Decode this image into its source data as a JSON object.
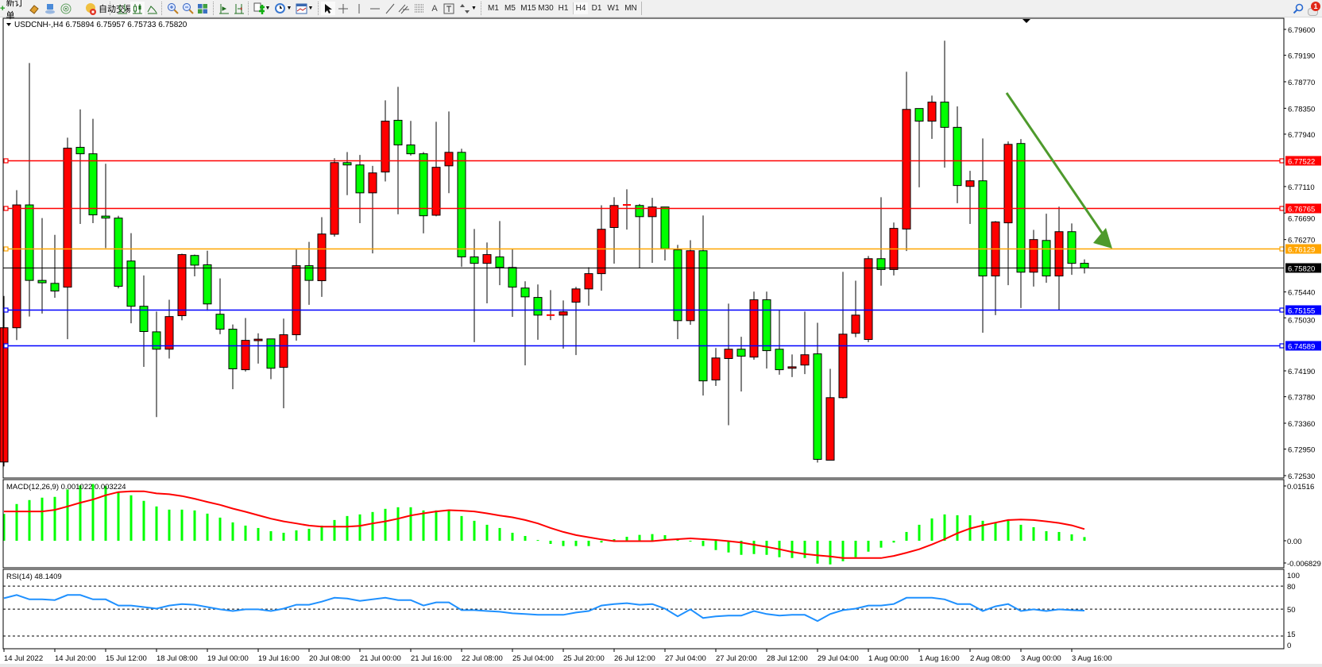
{
  "toolbar": {
    "new_order_label": "新订单",
    "auto_trading_label": "自动交易",
    "icons": [
      "new-order-icon",
      "market-watch-icon",
      "navigator-icon",
      "signal-icon",
      "auto-trading-icon",
      "bar-chart-icon",
      "candlestick-icon",
      "line-chart-icon",
      "zoom-in-icon",
      "zoom-out-icon",
      "tile-windows-icon",
      "chart-shift-icon",
      "autoscroll-icon",
      "indicators-icon",
      "periods-icon",
      "templates-icon",
      "cursor-icon",
      "crosshair-icon",
      "vertical-line-icon",
      "horizontal-line-icon",
      "trendline-icon",
      "equidistant-channel-icon",
      "fibonacci-icon",
      "text-icon",
      "text-label-icon",
      "arrows-icon",
      "search-icon",
      "notification-icon"
    ],
    "timeframes": [
      "M1",
      "M5",
      "M15",
      "M30",
      "H1",
      "H4",
      "D1",
      "W1",
      "MN"
    ],
    "active_timeframe": "H4",
    "notification_count": "1"
  },
  "chart": {
    "title": "USDCNH-,H4  6.75894 6.75957 6.75733 6.75820",
    "symbol": "USDCNH-",
    "timeframe": "H4",
    "colors": {
      "bull": "#ff0000",
      "bear": "#00ff00",
      "arrow": "#4e9a2c",
      "bid_line": "#000000"
    }
  },
  "chart_data": {
    "type": "candlestick",
    "ylim": [
      6.72492,
      6.79776
    ],
    "price_ticks": [
      "6.79600",
      "6.79190",
      "6.78770",
      "6.78350",
      "6.77940",
      "6.77110",
      "6.76690",
      "6.76270",
      "6.75440",
      "6.75030",
      "6.74190",
      "6.73780",
      "6.73360",
      "6.72950",
      "6.72530"
    ],
    "time_labels": [
      "14 Jul 2022",
      "14 Jul 20:00",
      "15 Jul 12:00",
      "18 Jul 08:00",
      "19 Jul 00:00",
      "19 Jul 16:00",
      "20 Jul 08:00",
      "21 Jul 00:00",
      "21 Jul 16:00",
      "22 Jul 08:00",
      "25 Jul 04:00",
      "25 Jul 20:00",
      "26 Jul 12:00",
      "27 Jul 04:00",
      "27 Jul 20:00",
      "28 Jul 12:00",
      "29 Jul 04:00",
      "1 Aug 00:00",
      "1 Aug 16:00",
      "2 Aug 08:00",
      "3 Aug 00:00",
      "3 Aug 16:00"
    ],
    "time_label_every_bars": 4,
    "ohlc": [
      [
        6.72746,
        6.75376,
        6.72676,
        6.74873
      ],
      [
        6.74873,
        6.77052,
        6.74678,
        6.76819
      ],
      [
        6.76819,
        6.79067,
        6.7505,
        6.75623
      ],
      [
        6.75623,
        6.7661,
        6.75097,
        6.75585
      ],
      [
        6.75576,
        6.76344,
        6.75348,
        6.75455
      ],
      [
        6.75516,
        6.77885,
        6.74692,
        6.77718
      ],
      [
        6.77731,
        6.78332,
        6.76517,
        6.77629
      ],
      [
        6.77629,
        6.78183,
        6.7653,
        6.76661
      ],
      [
        6.76642,
        6.77471,
        6.76135,
        6.7661
      ],
      [
        6.7661,
        6.76647,
        6.75497,
        6.7553
      ],
      [
        6.7593,
        6.76372,
        6.74943,
        6.75213
      ],
      [
        6.75213,
        6.75702,
        6.74254,
        6.74813
      ],
      [
        6.74808,
        6.75129,
        6.73458,
        6.74533
      ],
      [
        6.74533,
        6.75316,
        6.74385,
        6.7505
      ],
      [
        6.75064,
        6.76046,
        6.7499,
        6.76032
      ],
      [
        6.76018,
        6.76032,
        6.75688,
        6.75865
      ],
      [
        6.7587,
        6.76093,
        6.75143,
        6.7525
      ],
      [
        6.75087,
        6.75655,
        6.74771,
        6.7485
      ],
      [
        6.7485,
        6.74925,
        6.739,
        6.74222
      ],
      [
        6.74208,
        6.75027,
        6.7418,
        6.74673
      ],
      [
        6.74668,
        6.74785,
        6.74305,
        6.74692
      ],
      [
        6.74696,
        6.74696,
        6.74059,
        6.74231
      ],
      [
        6.74245,
        6.75018,
        6.73598,
        6.74762
      ],
      [
        6.74762,
        6.76112,
        6.74668,
        6.75856
      ],
      [
        6.75856,
        6.76233,
        6.75236,
        6.75623
      ],
      [
        6.75618,
        6.76624,
        6.75362,
        6.76358
      ],
      [
        6.76354,
        6.77559,
        6.76316,
        6.77489
      ],
      [
        6.77489,
        6.77657,
        6.76973,
        6.77452
      ],
      [
        6.77452,
        6.7761,
        6.7653,
        6.7701
      ],
      [
        6.7701,
        6.77438,
        6.76051,
        6.77326
      ],
      [
        6.7734,
        6.78476,
        6.77191,
        6.78146
      ],
      [
        6.7816,
        6.7869,
        6.7667,
        6.77769
      ],
      [
        6.77769,
        6.7815,
        6.77601,
        6.77629
      ],
      [
        6.77629,
        6.77657,
        6.76368,
        6.76647
      ],
      [
        6.76656,
        6.78136,
        6.76638,
        6.77415
      ],
      [
        6.77438,
        6.78299,
        6.77005,
        6.77652
      ],
      [
        6.77652,
        6.77708,
        6.75837,
        6.75995
      ],
      [
        6.75995,
        6.76437,
        6.74645,
        6.75893
      ],
      [
        6.75893,
        6.76223,
        6.7526,
        6.76032
      ],
      [
        6.75995,
        6.76563,
        6.75548,
        6.75828
      ],
      [
        6.75828,
        6.76116,
        6.75046,
        6.75516
      ],
      [
        6.75502,
        6.75609,
        6.74277,
        6.75362
      ],
      [
        6.75353,
        6.75558,
        6.74682,
        6.75073
      ],
      [
        6.75073,
        6.75469,
        6.74994,
        6.75073
      ],
      [
        6.75073,
        6.75306,
        6.74543,
        6.75125
      ],
      [
        6.75278,
        6.7552,
        6.7444,
        6.75488
      ],
      [
        6.75488,
        6.75832,
        6.75222,
        6.7573
      ],
      [
        6.7573,
        6.76814,
        6.7546,
        6.76433
      ],
      [
        6.76461,
        6.7694,
        6.75888,
        6.7681
      ],
      [
        6.7681,
        6.77066,
        6.76428,
        6.76819
      ],
      [
        6.7681,
        6.76833,
        6.75818,
        6.76633
      ],
      [
        6.76633,
        6.76931,
        6.75902,
        6.76786
      ],
      [
        6.76786,
        6.76786,
        6.75939,
        6.76125
      ],
      [
        6.76107,
        6.76186,
        6.74692,
        6.74985
      ],
      [
        6.74985,
        6.7626,
        6.7492,
        6.76093
      ],
      [
        6.76093,
        6.76652,
        6.73798,
        6.74031
      ],
      [
        6.74045,
        6.74552,
        6.73952,
        6.74394
      ],
      [
        6.74385,
        6.75255,
        6.73328,
        6.74533
      ],
      [
        6.74533,
        6.74729,
        6.73863,
        6.74422
      ],
      [
        6.74408,
        6.75446,
        6.74366,
        6.75316
      ],
      [
        6.75316,
        6.75446,
        6.74226,
        6.7451
      ],
      [
        6.74533,
        6.75157,
        6.74129,
        6.74208
      ],
      [
        6.74231,
        6.7445,
        6.74091,
        6.74254
      ],
      [
        6.74282,
        6.75129,
        6.74138,
        6.74445
      ],
      [
        6.74459,
        6.74952,
        6.72737,
        6.72788
      ],
      [
        6.72774,
        6.74222,
        6.72774,
        6.73765
      ],
      [
        6.73765,
        6.75758,
        6.73751,
        6.74771
      ],
      [
        6.74785,
        6.75618,
        6.74724,
        6.75073
      ],
      [
        6.74687,
        6.76009,
        6.74645,
        6.75967
      ],
      [
        6.75967,
        6.7694,
        6.75539,
        6.75795
      ],
      [
        6.75795,
        6.7654,
        6.75702,
        6.76447
      ],
      [
        6.76437,
        6.78928,
        6.76088,
        6.78332
      ],
      [
        6.78346,
        6.78346,
        6.77098,
        6.78146
      ],
      [
        6.78146,
        6.78551,
        6.77866,
        6.78448
      ],
      [
        6.78448,
        6.79421,
        6.7741,
        6.78048
      ],
      [
        6.78048,
        6.78379,
        6.76847,
        6.77126
      ],
      [
        6.77112,
        6.77359,
        6.76517,
        6.77201
      ],
      [
        6.77201,
        6.77871,
        6.74794,
        6.75693
      ],
      [
        6.75693,
        6.76563,
        6.75073,
        6.76549
      ],
      [
        6.76535,
        6.77825,
        6.75548,
        6.77778
      ],
      [
        6.77792,
        6.77862,
        6.75185,
        6.75753
      ],
      [
        6.75753,
        6.76423,
        6.75525,
        6.7627
      ],
      [
        6.76256,
        6.76679,
        6.75585,
        6.75693
      ],
      [
        6.75693,
        6.76791,
        6.75157,
        6.76395
      ],
      [
        6.76395,
        6.76526,
        6.75711,
        6.75893
      ],
      [
        6.75894,
        6.75957,
        6.75733,
        6.7582
      ]
    ],
    "horizontal_lines": [
      {
        "price": "6.77522",
        "color": "#ff0000"
      },
      {
        "price": "6.76765",
        "color": "#ff0000"
      },
      {
        "price": "6.76129",
        "color": "#ffa500"
      },
      {
        "price": "6.75820",
        "color": "#000000"
      },
      {
        "price": "6.75155",
        "color": "#0000ff"
      },
      {
        "price": "6.74589",
        "color": "#0000ff"
      }
    ],
    "macd": {
      "title": "MACD(12,26,9) 0.001022 0.003224",
      "axis_labels": [
        "0.01516",
        "0.00",
        "-0.006829"
      ],
      "histogram_color": "#00ff00",
      "signal_color": "#ff0000",
      "histogram": [
        0.00743,
        0.01016,
        0.01126,
        0.01192,
        0.01214,
        0.0142,
        0.0153,
        0.0157,
        0.0151,
        0.01347,
        0.01258,
        0.01104,
        0.00949,
        0.00861,
        0.00861,
        0.00839,
        0.0075,
        0.0064,
        0.00508,
        0.00419,
        0.00353,
        0.00265,
        0.00221,
        0.00287,
        0.00331,
        0.00419,
        0.00574,
        0.00684,
        0.00729,
        0.00795,
        0.00883,
        0.00927,
        0.00927,
        0.00839,
        0.00839,
        0.00839,
        0.00684,
        0.00552,
        0.00442,
        0.00353,
        0.00221,
        0.00132,
        0.0002,
        -0.00088,
        -0.00147,
        -0.00147,
        -0.00147,
        -0.0005,
        0.00044,
        0.0011,
        0.00162,
        0.00184,
        0.00155,
        0.00044,
        -0.0001,
        -0.00147,
        -0.00258,
        -0.00324,
        -0.0039,
        -0.00368,
        -0.0039,
        -0.00456,
        -0.00478,
        -0.00478,
        -0.00633,
        -0.00655,
        -0.00567,
        -0.00456,
        -0.00302,
        -0.00191,
        -0.0005,
        0.00243,
        0.00442,
        0.00618,
        0.00729,
        0.00706,
        0.00706,
        0.00552,
        0.00508,
        0.00552,
        0.00442,
        0.00375,
        0.00265,
        0.00243,
        0.00177,
        0.00102
      ],
      "signal": [
        0.0081,
        0.0081,
        0.0081,
        0.0081,
        0.00854,
        0.0095,
        0.01052,
        0.0114,
        0.01258,
        0.01347,
        0.01369,
        0.01369,
        0.0131,
        0.01288,
        0.01236,
        0.01163,
        0.01074,
        0.00993,
        0.0089,
        0.00802,
        0.00706,
        0.00611,
        0.00537,
        0.00478,
        0.00419,
        0.0039,
        0.0039,
        0.0039,
        0.00412,
        0.00478,
        0.00537,
        0.00611,
        0.00699,
        0.00758,
        0.0081,
        0.00846,
        0.00832,
        0.0081,
        0.00758,
        0.00699,
        0.00648,
        0.00574,
        0.00478,
        0.00353,
        0.00243,
        0.00155,
        0.00096,
        0.00037,
        -0.0001,
        -0.0001,
        -0.0001,
        -0.0001,
        0.00022,
        0.00044,
        0.00066,
        0.00044,
        0.00022,
        -0.0001,
        -0.0005,
        -0.0011,
        -0.0017,
        -0.00235,
        -0.00309,
        -0.00368,
        -0.00405,
        -0.00434,
        -0.00478,
        -0.00478,
        -0.00478,
        -0.00478,
        -0.0042,
        -0.00331,
        -0.00235,
        -0.00103,
        0.00044,
        0.00206,
        0.00339,
        0.00427,
        0.005,
        0.00574,
        0.00589,
        0.00574,
        0.00537,
        0.00493,
        0.00427,
        0.00322
      ]
    },
    "rsi": {
      "title": "RSI(14) 48.1409",
      "axis_labels": [
        "100",
        "80",
        "50",
        "15",
        "0"
      ],
      "levels": [
        80,
        50,
        15
      ],
      "line_color": "#1e90ff",
      "values": [
        64.2,
        68.5,
        62.8,
        62.8,
        61.8,
        68.5,
        68.5,
        62.8,
        62.8,
        54.7,
        54.7,
        52.7,
        50.7,
        54.7,
        56.7,
        55.7,
        52.7,
        49.7,
        47.6,
        49.7,
        49.7,
        47.6,
        50.7,
        55.7,
        55.7,
        59.8,
        64.8,
        63.8,
        60.8,
        62.8,
        64.8,
        61.8,
        61.8,
        54.7,
        58.8,
        58.8,
        48.7,
        48.7,
        47.6,
        46.6,
        44.6,
        43.6,
        42.6,
        42.6,
        42.6,
        45.6,
        47.6,
        54.7,
        56.7,
        57.8,
        55.7,
        56.7,
        50.7,
        40.6,
        49.7,
        38.5,
        40.6,
        41.6,
        41.6,
        47.6,
        43.6,
        41.6,
        42.6,
        42.6,
        34.5,
        43.6,
        48.7,
        50.7,
        54.7,
        54.7,
        56.7,
        64.8,
        64.8,
        64.8,
        62.8,
        56.7,
        56.7,
        47.6,
        53.7,
        56.7,
        47.6,
        49.7,
        47.6,
        49.7,
        48.7,
        48.1
      ]
    }
  }
}
